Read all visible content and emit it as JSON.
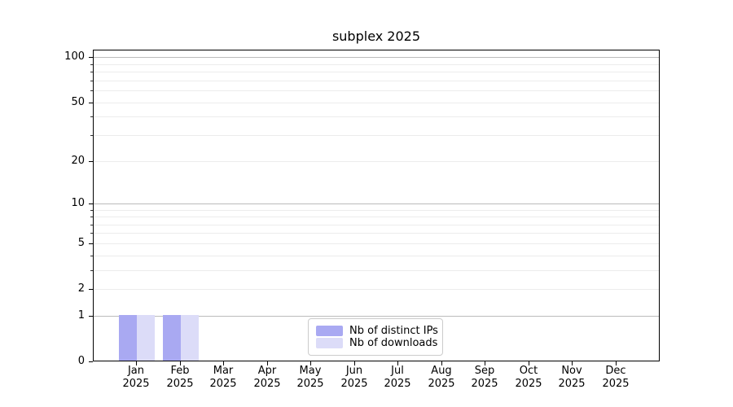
{
  "figure": {
    "background": "#ffffff",
    "spine_color": "#000000",
    "grid_major_color": "#bbbbbb",
    "grid_minor_color": "#ececec"
  },
  "chart_data": {
    "type": "bar",
    "title": "subplex 2025",
    "categories": [
      "Jan",
      "Feb",
      "Mar",
      "Apr",
      "May",
      "Jun",
      "Jul",
      "Aug",
      "Sep",
      "Oct",
      "Nov",
      "Dec"
    ],
    "category_year": "2025",
    "series": [
      {
        "name": "Nb of distinct IPs",
        "color": "#a9a9f2",
        "values": [
          1,
          1,
          0,
          0,
          0,
          0,
          0,
          0,
          0,
          0,
          0,
          0
        ]
      },
      {
        "name": "Nb of downloads",
        "color": "#dcdcf8",
        "values": [
          1,
          1,
          0,
          0,
          0,
          0,
          0,
          0,
          0,
          0,
          0,
          0
        ]
      }
    ],
    "yscale": "log1p",
    "ylim": [
      0,
      100
    ],
    "y_labeled_ticks": [
      0,
      1,
      2,
      5,
      10,
      20,
      50,
      100
    ],
    "y_decade_gridlines": [
      1,
      10,
      100
    ],
    "y_minor_ticks": [
      2,
      3,
      4,
      5,
      6,
      7,
      8,
      9,
      20,
      30,
      40,
      50,
      60,
      70,
      80,
      90
    ],
    "grid": "horizontal",
    "legend_position": "lower center inside"
  }
}
